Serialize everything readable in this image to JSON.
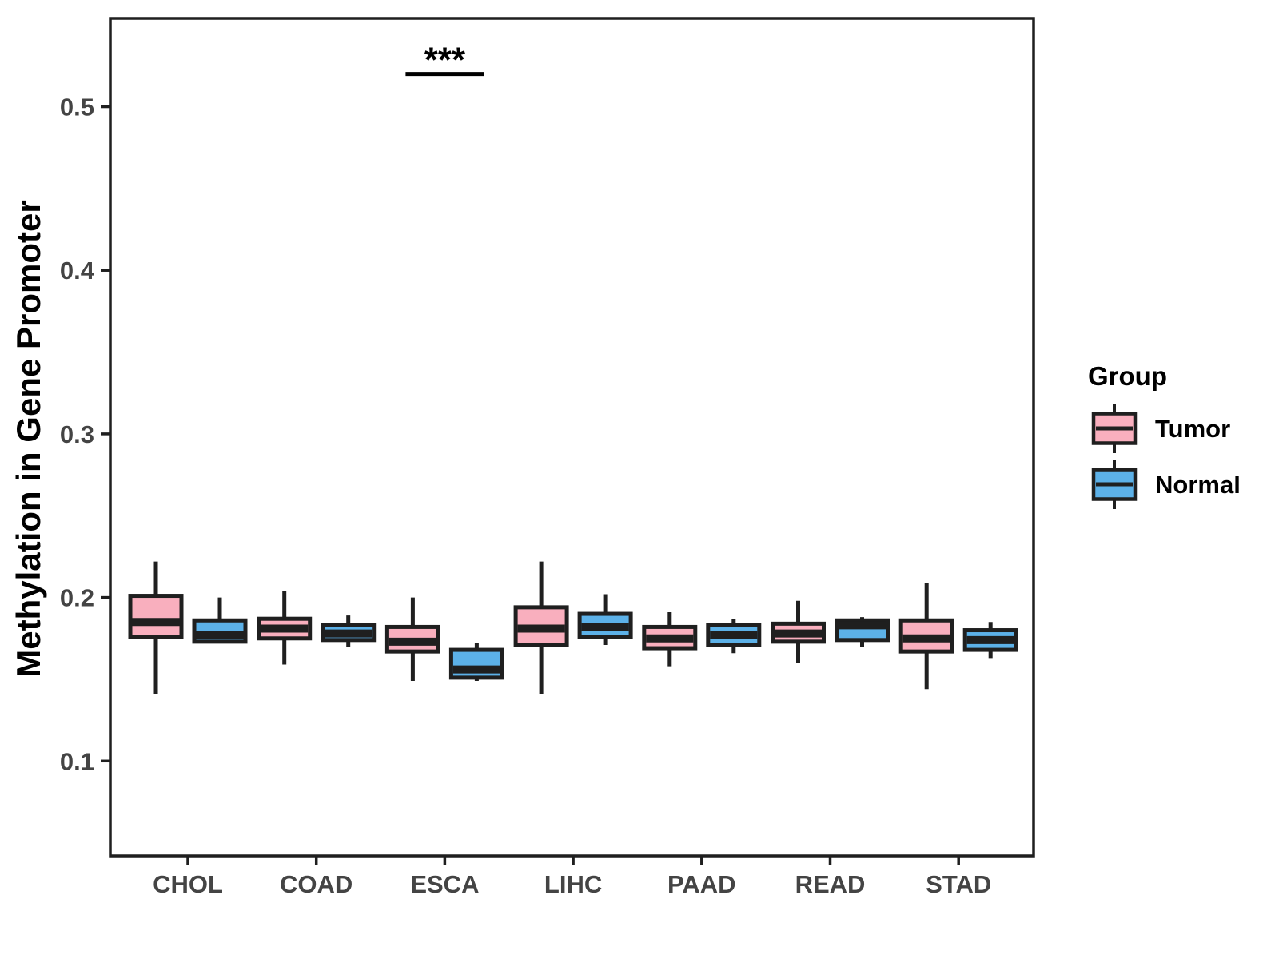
{
  "figure": {
    "y_axis_title": "Methylation in Gene Promoter",
    "x_axis_title": "",
    "legend": {
      "title": "Group",
      "items": [
        {
          "label": "Tumor",
          "color": "#F9AFBE"
        },
        {
          "label": "Normal",
          "color": "#5CB1E8"
        }
      ]
    },
    "annotation": {
      "label": "***",
      "over_category": "ESCA"
    }
  },
  "chart_data": {
    "type": "boxplot",
    "title": "",
    "xlabel": "",
    "ylabel": "Methylation in Gene Promoter",
    "categories": [
      "CHOL",
      "COAD",
      "ESCA",
      "LIHC",
      "PAAD",
      "READ",
      "STAD"
    ],
    "yticks": {
      "values": [
        0.1,
        0.2,
        0.3,
        0.4,
        0.5
      ],
      "labels": [
        "0.1",
        "0.2",
        "0.3",
        "0.4",
        "0.5"
      ]
    },
    "ylim": [
      0.042,
      0.554
    ],
    "grid": false,
    "legend_position": "right",
    "legend_title": "Group",
    "series": [
      {
        "name": "Tumor",
        "fill": "#F9AFBE",
        "boxes": [
          {
            "category": "CHOL",
            "min": 0.141,
            "q1": 0.176,
            "median": 0.185,
            "q3": 0.201,
            "max": 0.222
          },
          {
            "category": "COAD",
            "min": 0.159,
            "q1": 0.175,
            "median": 0.181,
            "q3": 0.187,
            "max": 0.204
          },
          {
            "category": "ESCA",
            "min": 0.149,
            "q1": 0.167,
            "median": 0.173,
            "q3": 0.182,
            "max": 0.2
          },
          {
            "category": "LIHC",
            "min": 0.141,
            "q1": 0.171,
            "median": 0.181,
            "q3": 0.194,
            "max": 0.222
          },
          {
            "category": "PAAD",
            "min": 0.158,
            "q1": 0.169,
            "median": 0.175,
            "q3": 0.182,
            "max": 0.191
          },
          {
            "category": "READ",
            "min": 0.16,
            "q1": 0.173,
            "median": 0.178,
            "q3": 0.184,
            "max": 0.198
          },
          {
            "category": "STAD",
            "min": 0.144,
            "q1": 0.167,
            "median": 0.175,
            "q3": 0.186,
            "max": 0.209
          }
        ]
      },
      {
        "name": "Normal",
        "fill": "#5CB1E8",
        "boxes": [
          {
            "category": "CHOL",
            "min": 0.172,
            "q1": 0.173,
            "median": 0.177,
            "q3": 0.186,
            "max": 0.2
          },
          {
            "category": "COAD",
            "min": 0.17,
            "q1": 0.174,
            "median": 0.178,
            "q3": 0.183,
            "max": 0.189
          },
          {
            "category": "ESCA",
            "min": 0.149,
            "q1": 0.151,
            "median": 0.156,
            "q3": 0.168,
            "max": 0.172
          },
          {
            "category": "LIHC",
            "min": 0.171,
            "q1": 0.176,
            "median": 0.182,
            "q3": 0.19,
            "max": 0.202
          },
          {
            "category": "PAAD",
            "min": 0.166,
            "q1": 0.171,
            "median": 0.177,
            "q3": 0.183,
            "max": 0.187
          },
          {
            "category": "READ",
            "min": 0.17,
            "q1": 0.174,
            "median": 0.183,
            "q3": 0.186,
            "max": 0.188
          },
          {
            "category": "STAD",
            "min": 0.163,
            "q1": 0.168,
            "median": 0.174,
            "q3": 0.18,
            "max": 0.185
          }
        ]
      }
    ],
    "significance": [
      {
        "category": "ESCA",
        "label": "***",
        "bar_y": 0.52
      }
    ],
    "colors": {
      "outline": "#1F1F1F",
      "axis_text": "#444444",
      "title_text": "#000000",
      "panel_bg": "#FFFFFF"
    }
  }
}
